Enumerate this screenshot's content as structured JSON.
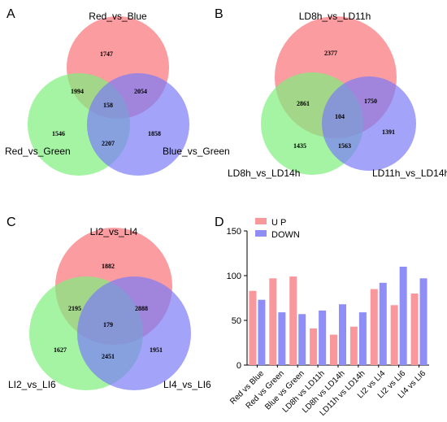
{
  "chart_data": [
    {
      "type": "venn",
      "panel": "A",
      "sets": [
        "Red_vs_Blue",
        "Red_vs_Green",
        "Blue_vs_Green"
      ],
      "colors": [
        "#f87278",
        "#7ef07e",
        "#7a7cf6"
      ],
      "regions": {
        "only_1": "1747",
        "only_2": "1546",
        "only_3": "1858",
        "r12": "1994",
        "r13": "2054",
        "r23": "2207",
        "r123": "158"
      }
    },
    {
      "type": "venn",
      "panel": "B",
      "sets": [
        "LD8h_vs_LD11h",
        "LD8h_vs_LD14h",
        "LD11h_vs_LD14h"
      ],
      "colors": [
        "#f87278",
        "#7ef07e",
        "#7a7cf6"
      ],
      "regions": {
        "only_1": "2377",
        "only_2": "1435",
        "only_3": "1391",
        "r12": "2861",
        "r13": "1750",
        "r23": "1563",
        "r123": "104"
      }
    },
    {
      "type": "venn",
      "panel": "C",
      "sets": [
        "LI2_vs_LI4",
        "LI2_vs_LI6",
        "LI4_vs_LI6"
      ],
      "colors": [
        "#f87278",
        "#7ef07e",
        "#7a7cf6"
      ],
      "regions": {
        "only_1": "1882",
        "only_2": "1627",
        "only_3": "1951",
        "r12": "2195",
        "r13": "2888",
        "r23": "2451",
        "r123": "179"
      }
    },
    {
      "type": "bar",
      "panel": "D",
      "categories": [
        "Red vs Blue",
        "Red vs Green",
        "Blue vs Green",
        "LD8h vs LD11h",
        "LD8h vs LD14h",
        "LD11h vs LD14h",
        "LI2 vs LI4",
        "LI2 vs LI6",
        "LI4 vs LI6"
      ],
      "series": [
        {
          "name": "U P",
          "color": "#f8989c",
          "values": [
            83,
            97,
            99,
            41,
            34,
            43,
            85,
            67,
            80
          ]
        },
        {
          "name": "DOWN",
          "color": "#8e8ef6",
          "values": [
            73,
            59,
            57,
            61,
            68,
            59,
            92,
            110,
            97
          ]
        }
      ],
      "ylim": [
        0,
        150
      ],
      "yticks": [
        "0",
        "50",
        "100",
        "150"
      ],
      "legend": "top-left"
    }
  ]
}
